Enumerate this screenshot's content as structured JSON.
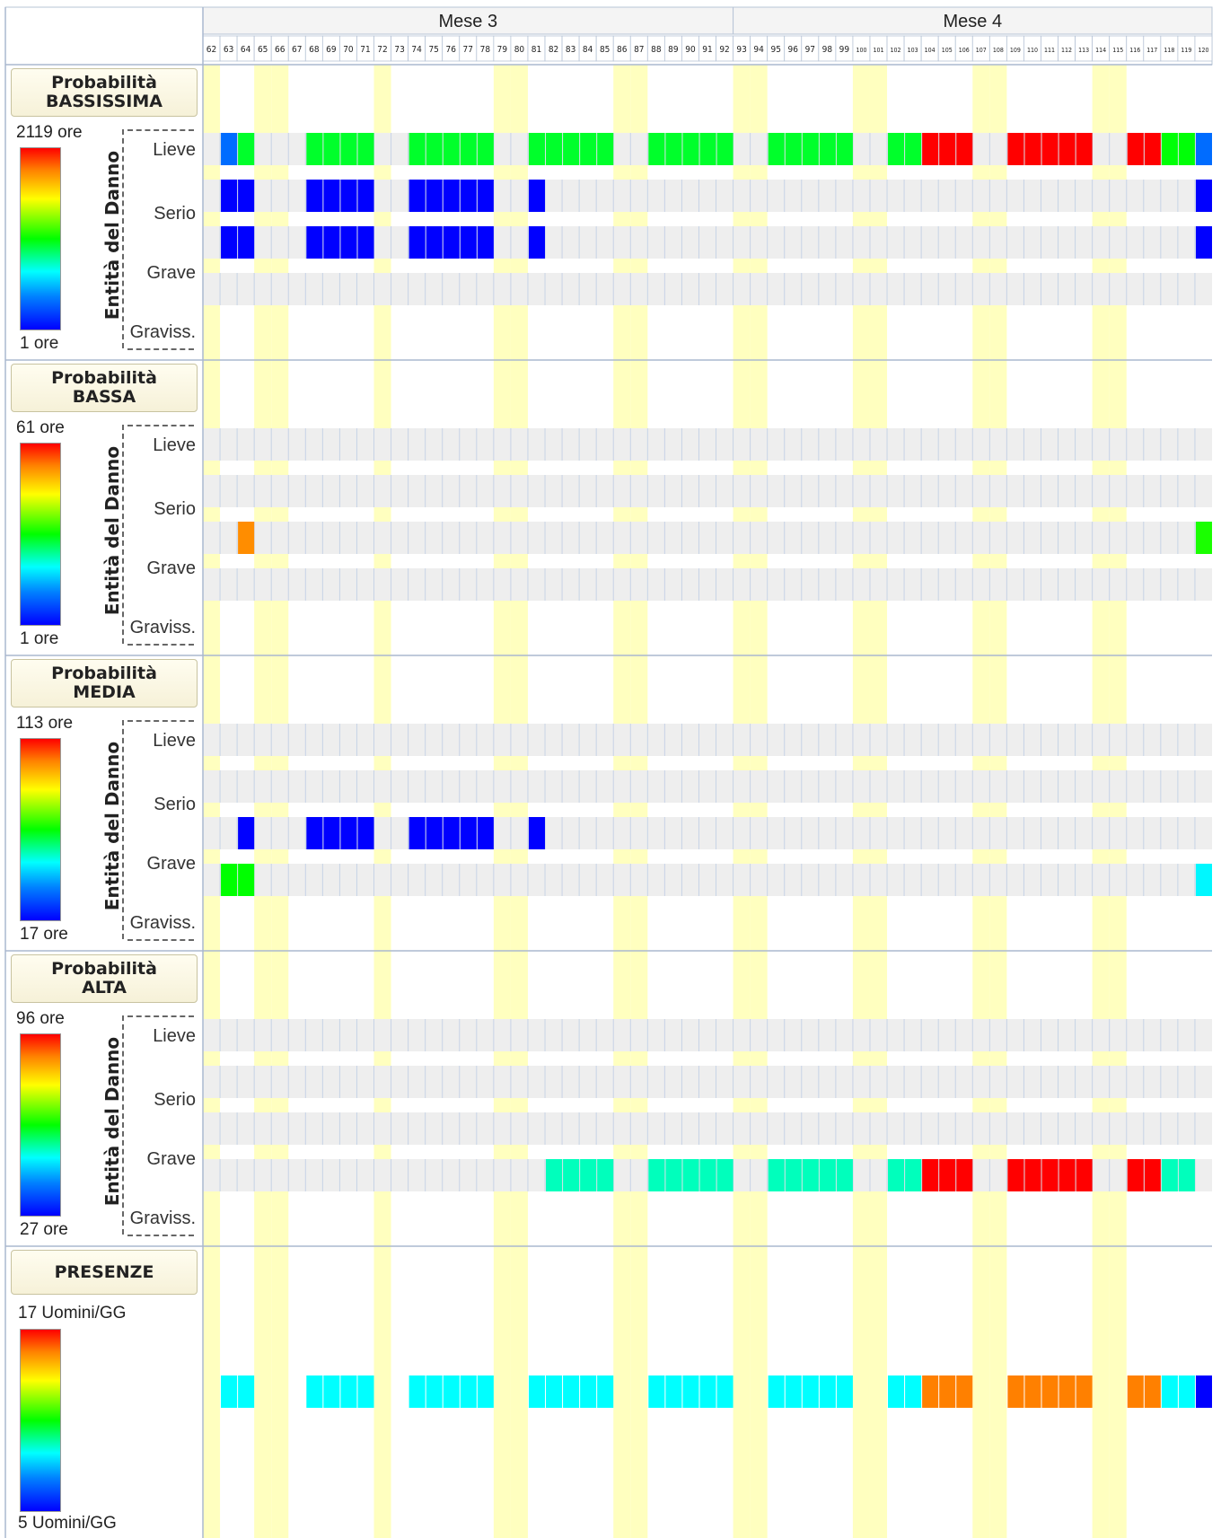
{
  "chart_data": {
    "type": "heatmap",
    "months": [
      {
        "label": "Mese 3",
        "start": 62,
        "end": 92
      },
      {
        "label": "Mese 4",
        "start": 93,
        "end": 120
      }
    ],
    "days": [
      62,
      63,
      64,
      65,
      66,
      67,
      68,
      69,
      70,
      71,
      72,
      73,
      74,
      75,
      76,
      77,
      78,
      79,
      80,
      81,
      82,
      83,
      84,
      85,
      86,
      87,
      88,
      89,
      90,
      91,
      92,
      93,
      94,
      95,
      96,
      97,
      98,
      99,
      100,
      101,
      102,
      103,
      104,
      105,
      106,
      107,
      108,
      109,
      110,
      111,
      112,
      113,
      114,
      115,
      116,
      117,
      118,
      119,
      120
    ],
    "weekend_days": [
      62,
      65,
      66,
      72,
      79,
      80,
      86,
      87,
      93,
      94,
      100,
      101,
      107,
      108,
      114,
      115
    ],
    "axis_title": "Entità del Danno",
    "severities": [
      "Lieve",
      "Serio",
      "Grave",
      "Graviss."
    ],
    "colorscale": [
      "#0000ff",
      "#0080ff",
      "#00ffff",
      "#00ff00",
      "#ffff00",
      "#ff8000",
      "#ff0000"
    ],
    "sections": [
      {
        "title_lines": [
          "Probabilità",
          "BASSISSIMA"
        ],
        "max_label": "2119 ore",
        "min_label": "1 ore",
        "max": 2119,
        "min": 1,
        "rows": [
          {
            "severity": "Lieve",
            "cells": [
              [
                63,
                300
              ],
              [
                64,
                1000
              ],
              [
                68,
                1000
              ],
              [
                69,
                1000
              ],
              [
                70,
                1000
              ],
              [
                71,
                1000
              ],
              [
                74,
                1000
              ],
              [
                75,
                1000
              ],
              [
                76,
                1000
              ],
              [
                77,
                1000
              ],
              [
                78,
                1000
              ],
              [
                81,
                1000
              ],
              [
                82,
                1000
              ],
              [
                83,
                1000
              ],
              [
                84,
                1000
              ],
              [
                85,
                1000
              ],
              [
                88,
                1000
              ],
              [
                89,
                1000
              ],
              [
                90,
                1000
              ],
              [
                91,
                1000
              ],
              [
                92,
                1000
              ],
              [
                95,
                1000
              ],
              [
                96,
                1000
              ],
              [
                97,
                1000
              ],
              [
                98,
                1000
              ],
              [
                99,
                1000
              ],
              [
                102,
                1000
              ],
              [
                103,
                1000
              ],
              [
                104,
                2119
              ],
              [
                105,
                2119
              ],
              [
                106,
                2119
              ],
              [
                109,
                2119
              ],
              [
                110,
                2119
              ],
              [
                111,
                2119
              ],
              [
                112,
                2119
              ],
              [
                113,
                2119
              ],
              [
                116,
                2119
              ],
              [
                117,
                2119
              ],
              [
                118,
                1050
              ],
              [
                119,
                1050
              ],
              [
                120,
                300
              ]
            ]
          },
          {
            "severity": "Serio",
            "cells": [
              [
                63,
                1
              ],
              [
                64,
                1
              ],
              [
                68,
                1
              ],
              [
                69,
                1
              ],
              [
                70,
                1
              ],
              [
                71,
                1
              ],
              [
                74,
                1
              ],
              [
                75,
                1
              ],
              [
                76,
                1
              ],
              [
                77,
                1
              ],
              [
                78,
                1
              ],
              [
                81,
                1
              ],
              [
                120,
                1
              ]
            ]
          },
          {
            "severity": "Grave",
            "cells": [
              [
                63,
                1
              ],
              [
                64,
                1
              ],
              [
                68,
                1
              ],
              [
                69,
                1
              ],
              [
                70,
                1
              ],
              [
                71,
                1
              ],
              [
                74,
                1
              ],
              [
                75,
                1
              ],
              [
                76,
                1
              ],
              [
                77,
                1
              ],
              [
                78,
                1
              ],
              [
                81,
                1
              ],
              [
                120,
                1
              ]
            ]
          },
          {
            "severity": "Graviss.",
            "cells": []
          }
        ]
      },
      {
        "title_lines": [
          "Probabilità",
          "BASSA"
        ],
        "max_label": "61 ore",
        "min_label": "1 ore",
        "max": 61,
        "min": 1,
        "rows": [
          {
            "severity": "Lieve",
            "cells": []
          },
          {
            "severity": "Serio",
            "cells": []
          },
          {
            "severity": "Grave",
            "cells": [
              [
                64,
                50
              ],
              [
                120,
                32
              ]
            ]
          },
          {
            "severity": "Graviss.",
            "cells": []
          }
        ]
      },
      {
        "title_lines": [
          "Probabilità",
          "MEDIA"
        ],
        "max_label": "113 ore",
        "min_label": "17 ore",
        "max": 113,
        "min": 17,
        "rows": [
          {
            "severity": "Lieve",
            "cells": []
          },
          {
            "severity": "Serio",
            "cells": []
          },
          {
            "severity": "Grave",
            "cells": [
              [
                64,
                17
              ],
              [
                68,
                17
              ],
              [
                69,
                17
              ],
              [
                70,
                17
              ],
              [
                71,
                17
              ],
              [
                74,
                17
              ],
              [
                75,
                17
              ],
              [
                76,
                17
              ],
              [
                77,
                17
              ],
              [
                78,
                17
              ],
              [
                81,
                17
              ]
            ]
          },
          {
            "severity": "Graviss.",
            "cells": [
              [
                63,
                65
              ],
              [
                64,
                65
              ],
              [
                120,
                48
              ]
            ]
          }
        ]
      },
      {
        "title_lines": [
          "Probabilità",
          "ALTA"
        ],
        "max_label": "96 ore",
        "min_label": "27 ore",
        "max": 96,
        "min": 27,
        "rows": [
          {
            "severity": "Lieve",
            "cells": []
          },
          {
            "severity": "Serio",
            "cells": []
          },
          {
            "severity": "Grave",
            "cells": []
          },
          {
            "severity": "Graviss.",
            "cells": [
              [
                82,
                53
              ],
              [
                83,
                53
              ],
              [
                84,
                53
              ],
              [
                85,
                53
              ],
              [
                88,
                53
              ],
              [
                89,
                53
              ],
              [
                90,
                53
              ],
              [
                91,
                53
              ],
              [
                92,
                53
              ],
              [
                95,
                53
              ],
              [
                96,
                53
              ],
              [
                97,
                53
              ],
              [
                98,
                53
              ],
              [
                99,
                53
              ],
              [
                102,
                53
              ],
              [
                103,
                53
              ],
              [
                104,
                96
              ],
              [
                105,
                96
              ],
              [
                106,
                96
              ],
              [
                109,
                96
              ],
              [
                110,
                96
              ],
              [
                111,
                96
              ],
              [
                112,
                96
              ],
              [
                113,
                96
              ],
              [
                116,
                96
              ],
              [
                117,
                96
              ],
              [
                118,
                53
              ],
              [
                119,
                53
              ]
            ]
          }
        ]
      }
    ],
    "presenze": {
      "title": "PRESENZE",
      "max_label": "17 Uomini/GG",
      "min_label": "5 Uomini/GG",
      "max": 17,
      "min": 5,
      "cells": [
        [
          63,
          9
        ],
        [
          64,
          9
        ],
        [
          68,
          9
        ],
        [
          69,
          9
        ],
        [
          70,
          9
        ],
        [
          71,
          9
        ],
        [
          74,
          9
        ],
        [
          75,
          9
        ],
        [
          76,
          9
        ],
        [
          77,
          9
        ],
        [
          78,
          9
        ],
        [
          81,
          9
        ],
        [
          82,
          9
        ],
        [
          83,
          9
        ],
        [
          84,
          9
        ],
        [
          85,
          9
        ],
        [
          88,
          9
        ],
        [
          89,
          9
        ],
        [
          90,
          9
        ],
        [
          91,
          9
        ],
        [
          92,
          9
        ],
        [
          95,
          9
        ],
        [
          96,
          9
        ],
        [
          97,
          9
        ],
        [
          98,
          9
        ],
        [
          99,
          9
        ],
        [
          102,
          9
        ],
        [
          103,
          9
        ],
        [
          104,
          15
        ],
        [
          105,
          15
        ],
        [
          106,
          15
        ],
        [
          109,
          15
        ],
        [
          110,
          15
        ],
        [
          111,
          15
        ],
        [
          112,
          15
        ],
        [
          113,
          15
        ],
        [
          116,
          15
        ],
        [
          117,
          15
        ],
        [
          118,
          9
        ],
        [
          119,
          9
        ],
        [
          120,
          5
        ]
      ]
    }
  }
}
